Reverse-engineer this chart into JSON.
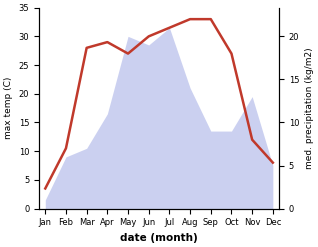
{
  "months": [
    "Jan",
    "Feb",
    "Mar",
    "Apr",
    "May",
    "Jun",
    "Jul",
    "Aug",
    "Sep",
    "Oct",
    "Nov",
    "Dec"
  ],
  "temperature": [
    3.5,
    10.5,
    28,
    29,
    27,
    30,
    31.5,
    33,
    33,
    27,
    12,
    8
  ],
  "precipitation": [
    1,
    6,
    7,
    11,
    20,
    19,
    21,
    14,
    9,
    9,
    13,
    5
  ],
  "temp_color": "#c0392b",
  "precip_fill_color": "#b0b8e8",
  "precip_fill_alpha": 0.65,
  "xlabel": "date (month)",
  "ylabel_left": "max temp (C)",
  "ylabel_right": "med. precipitation (kg/m2)",
  "ylim_left": [
    0,
    35
  ],
  "ylim_right": [
    0,
    23.33
  ],
  "temp_linewidth": 1.8,
  "bg_color": "#ffffff"
}
